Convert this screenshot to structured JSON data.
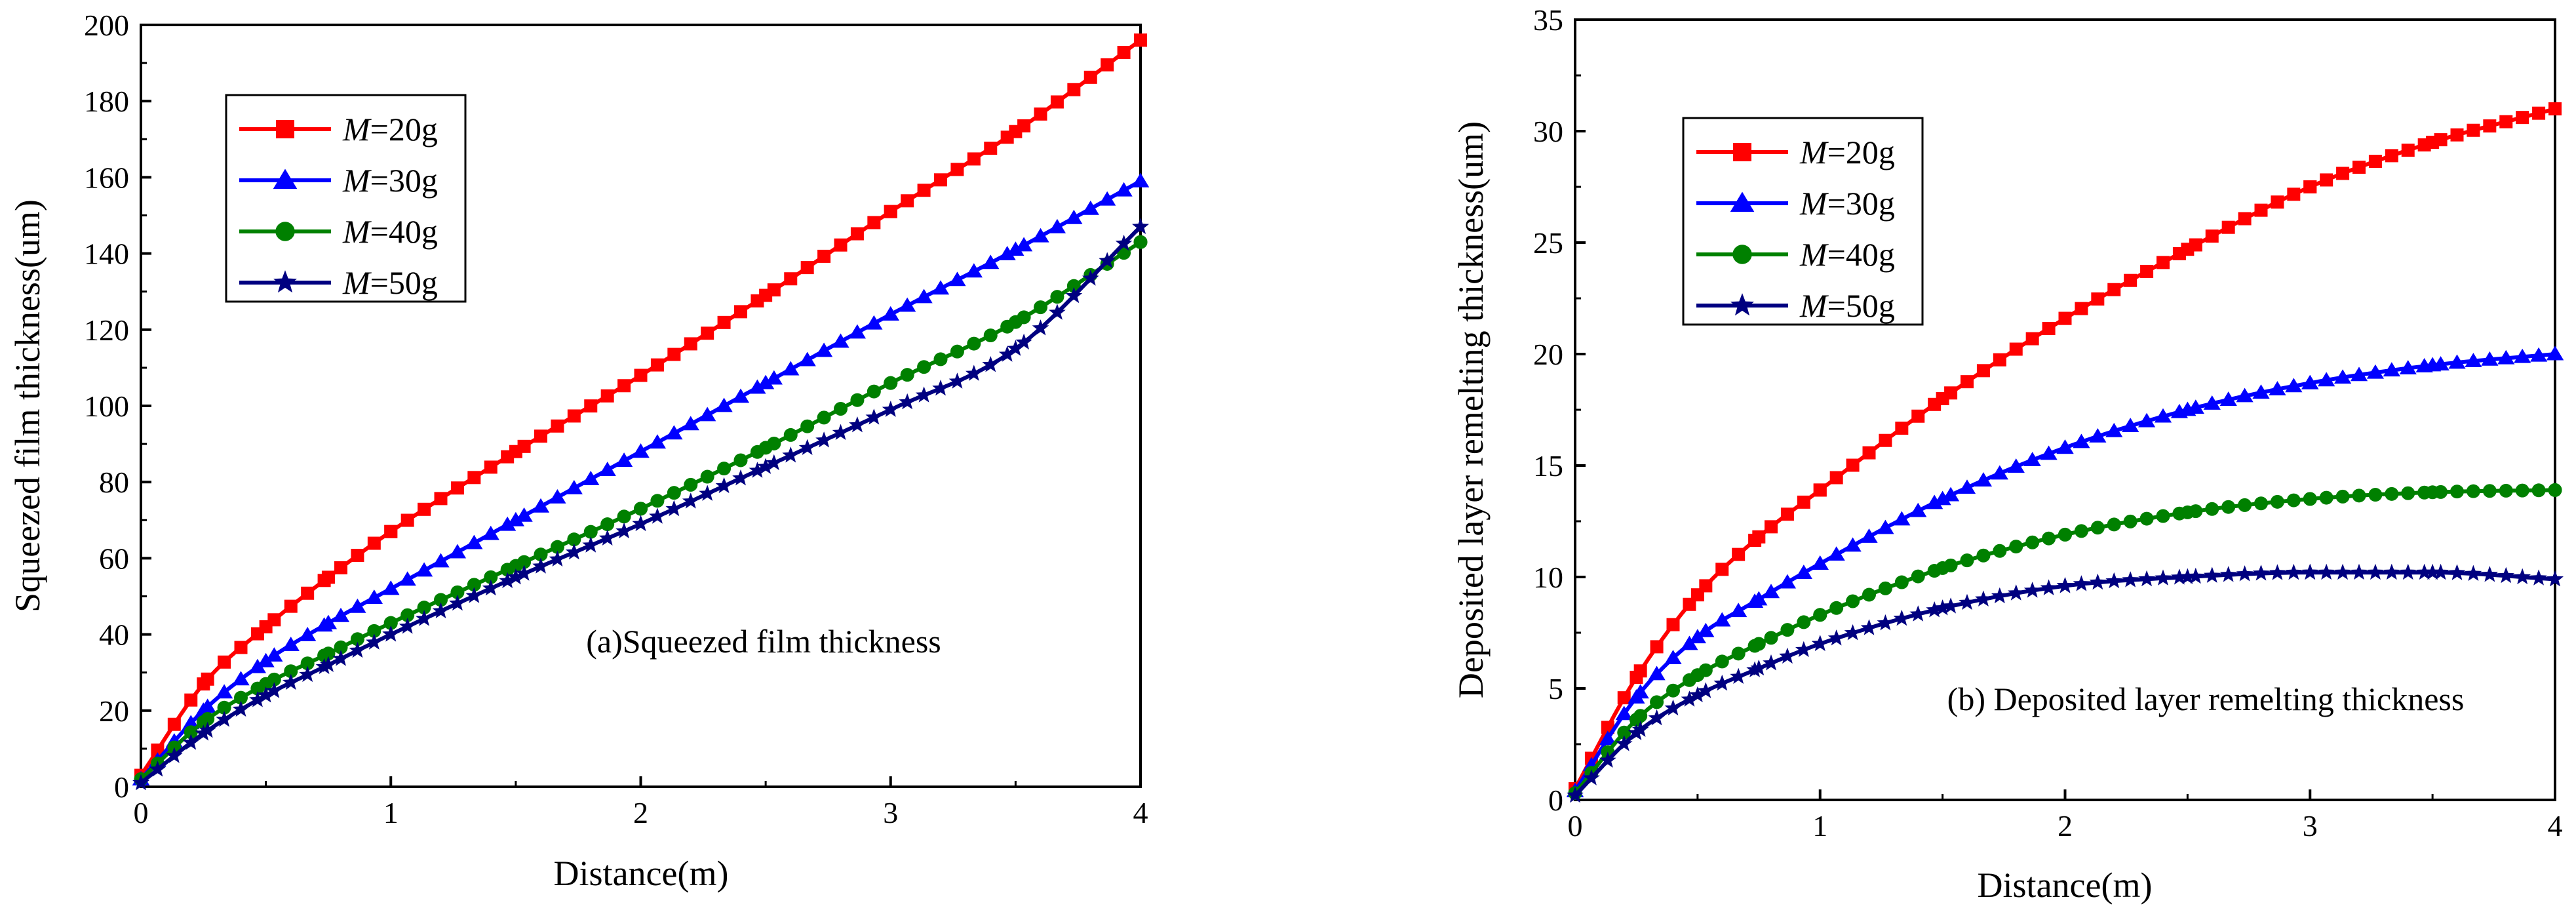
{
  "chart_data": [
    {
      "type": "line",
      "caption": "(a)Squeezed film thickness",
      "xlabel": "Distance(m)",
      "ylabel": "Squeezed film thickness(um)",
      "xlim": [
        0,
        4
      ],
      "ylim": [
        0,
        200
      ],
      "xticks": [
        "0",
        "1",
        "2",
        "3",
        "4"
      ],
      "yticks": [
        "0",
        "20",
        "40",
        "60",
        "80",
        "100",
        "120",
        "140",
        "160",
        "180",
        "200"
      ],
      "legend_position": "top-left",
      "series": [
        {
          "name_prefix": "M",
          "name_suffix": "=20g",
          "color": "#ff0000",
          "marker": "square",
          "x": [
            0,
            0.25,
            0.5,
            0.75,
            1.0,
            1.5,
            2.0,
            2.5,
            3.0,
            3.5,
            4.0
          ],
          "y": [
            3,
            27,
            42,
            55,
            67,
            88,
            108,
            129,
            151,
            172,
            196
          ]
        },
        {
          "name_prefix": "M",
          "name_suffix": "=30g",
          "color": "#0000ff",
          "marker": "triangle",
          "x": [
            0,
            0.25,
            0.5,
            0.75,
            1.0,
            1.5,
            2.0,
            2.5,
            3.0,
            3.5,
            4.0
          ],
          "y": [
            2,
            20,
            33,
            43,
            52,
            70,
            88,
            106,
            124,
            141,
            159
          ]
        },
        {
          "name_prefix": "M",
          "name_suffix": "=40g",
          "color": "#008000",
          "marker": "circle",
          "x": [
            0,
            0.25,
            0.5,
            0.75,
            1.0,
            1.5,
            2.0,
            2.5,
            3.0,
            3.5,
            4.0
          ],
          "y": [
            2,
            17,
            27,
            35,
            43,
            58,
            73,
            89,
            106,
            122,
            143
          ]
        },
        {
          "name_prefix": "M",
          "name_suffix": "=50g",
          "color": "#000080",
          "marker": "star",
          "x": [
            0,
            0.25,
            0.5,
            0.75,
            1.0,
            1.5,
            2.0,
            2.5,
            3.0,
            3.5,
            4.0
          ],
          "y": [
            1,
            14,
            24,
            32,
            40,
            55,
            69,
            84,
            99,
            115,
            147
          ]
        }
      ]
    },
    {
      "type": "line",
      "caption": "(b) Deposited layer remelting thickness",
      "xlabel": "Distance(m)",
      "ylabel": "Deposited layer remelting thickness(um)",
      "xlim": [
        0,
        4
      ],
      "ylim": [
        0,
        35
      ],
      "xticks": [
        "0",
        "1",
        "2",
        "3",
        "4"
      ],
      "yticks": [
        "0",
        "5",
        "10",
        "15",
        "20",
        "25",
        "30",
        "35"
      ],
      "legend_position": "top-left",
      "series": [
        {
          "name_prefix": "M",
          "name_suffix": "=20g",
          "color": "#ff0000",
          "marker": "square",
          "x": [
            0,
            0.25,
            0.5,
            0.75,
            1.0,
            1.5,
            2.0,
            2.5,
            3.0,
            3.5,
            4.0
          ],
          "y": [
            0.5,
            5.5,
            9.2,
            11.8,
            13.9,
            18,
            21.6,
            24.7,
            27.5,
            29.5,
            31
          ]
        },
        {
          "name_prefix": "M",
          "name_suffix": "=30g",
          "color": "#0000ff",
          "marker": "triangle",
          "x": [
            0,
            0.25,
            0.5,
            0.75,
            1.0,
            1.5,
            2.0,
            2.5,
            3.0,
            3.5,
            4.0
          ],
          "y": [
            0.4,
            4.6,
            7.3,
            9.0,
            10.6,
            13.5,
            15.8,
            17.5,
            18.7,
            19.5,
            20
          ]
        },
        {
          "name_prefix": "M",
          "name_suffix": "=40g",
          "color": "#008000",
          "marker": "circle",
          "x": [
            0,
            0.25,
            0.5,
            0.75,
            1.0,
            1.5,
            2.0,
            2.5,
            3.0,
            3.5,
            4.0
          ],
          "y": [
            0.3,
            3.6,
            5.6,
            7.0,
            8.3,
            10.4,
            11.9,
            12.9,
            13.5,
            13.8,
            13.9
          ]
        },
        {
          "name_prefix": "M",
          "name_suffix": "=50g",
          "color": "#000080",
          "marker": "star",
          "x": [
            0,
            0.25,
            0.5,
            0.75,
            1.0,
            1.5,
            2.0,
            2.5,
            3.0,
            3.5,
            4.0
          ],
          "y": [
            0.2,
            3.0,
            4.7,
            5.9,
            7.0,
            8.6,
            9.6,
            10.0,
            10.2,
            10.2,
            9.9
          ]
        }
      ]
    }
  ]
}
